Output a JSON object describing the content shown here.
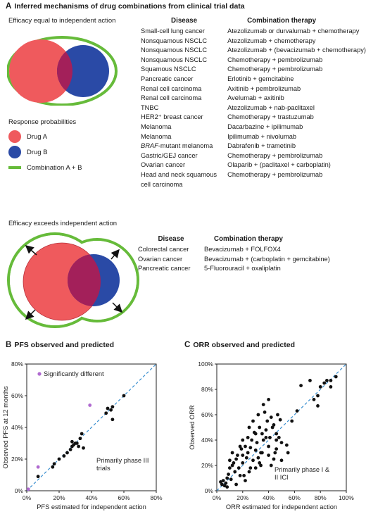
{
  "panel_a": {
    "letter": "A",
    "title": "Inferred mechanisms of drug combinations from clinical trial data",
    "section1": {
      "subtitle": "Efficacy equal to independent action",
      "col_disease": "Disease",
      "col_therapy": "Combination therapy",
      "rows": [
        {
          "disease": "Small-cell lung cancer",
          "therapy": "Atezolizumab or durvalumab + chemotherapy"
        },
        {
          "disease": "Nonsquamous NSCLC",
          "therapy": "Atezolizumab + chemotherapy"
        },
        {
          "disease": "Nonsquamous NSCLC",
          "therapy": "Atezolizumab + (bevacizumab + chemotherapy)"
        },
        {
          "disease": "Nonsquamous NSCLC",
          "therapy": "Chemotherapy + pembrolizumab"
        },
        {
          "disease": "Squamous NSCLC",
          "therapy": "Chemotherapy + pembrolizumab"
        },
        {
          "disease": "Pancreatic cancer",
          "therapy": "Erlotinib + gemcitabine"
        },
        {
          "disease": "Renal cell carcinoma",
          "therapy": "Axitinib + pembrolizumab"
        },
        {
          "disease": "Renal cell carcinoma",
          "therapy": "Avelumab + axitinib"
        },
        {
          "disease": "TNBC",
          "therapy": "Atezolizumab + nab-paclitaxel"
        },
        {
          "disease": "HER2⁺ breast cancer",
          "therapy": "Chemotherapy + trastuzumab"
        },
        {
          "disease": "Melanoma",
          "therapy": "Dacarbazine + ipilimumab"
        },
        {
          "disease": "Melanoma",
          "therapy": "Ipilimumab + nivolumab"
        },
        {
          "disease_em": "BRAF",
          "disease": "-mutant melanoma",
          "therapy": "Dabrafenib + trametinib"
        },
        {
          "disease": "Gastric/GEJ cancer",
          "therapy": "Chemotherapy + pembrolizumab"
        },
        {
          "disease": "Ovarian cancer",
          "therapy": "Olaparib + (paclitaxel + carboplatin)"
        },
        {
          "disease": "Head and neck squamous",
          "therapy": "Chemotherapy + pembrolizumab"
        },
        {
          "disease": "cell carcinoma",
          "therapy": ""
        }
      ]
    },
    "legend": {
      "title": "Response probabilities",
      "drug_a": "Drug A",
      "drug_b": "Drug B",
      "combo": "Combination A + B"
    },
    "colors": {
      "drug_a": "#ef5a5d",
      "drug_b": "#2a4aa6",
      "overlap": "#a3205a",
      "combo": "#66bb3a"
    },
    "section2": {
      "subtitle": "Efficacy exceeds independent action",
      "col_disease": "Disease",
      "col_therapy": "Combination therapy",
      "rows": [
        {
          "disease": "Colorectal cancer",
          "therapy": "Bevacizumab + FOLFOX4"
        },
        {
          "disease": "Ovarian cancer",
          "therapy": "Bevacizumab + (carboplatin + gemcitabine)"
        },
        {
          "disease": "Pancreatic cancer",
          "therapy": "5-Fluorouracil + oxaliplatin"
        }
      ]
    }
  },
  "chart_data": [
    {
      "letter": "B",
      "title": "PFS observed and predicted",
      "type": "scatter",
      "xlabel": "PFS estimated for independent action",
      "ylabel": "Observed PFS at 12 months",
      "xlim": [
        0,
        80
      ],
      "ylim": [
        0,
        80
      ],
      "xticks": [
        "0%",
        "20%",
        "40%",
        "60%",
        "80%"
      ],
      "yticks": [
        "0%",
        "20%",
        "40%",
        "60%",
        "80%"
      ],
      "annotation": "Primarily phase III trials",
      "legend_label": "Significantly different",
      "series": [
        {
          "key": "ns",
          "color": "#111111",
          "points": [
            [
              7,
              9
            ],
            [
              16,
              15
            ],
            [
              17,
              17
            ],
            [
              20,
              20
            ],
            [
              23,
              22
            ],
            [
              25,
              24
            ],
            [
              27,
              26
            ],
            [
              28,
              28
            ],
            [
              29,
              29
            ],
            [
              28,
              31
            ],
            [
              30,
              30
            ],
            [
              31,
              30
            ],
            [
              32,
              28
            ],
            [
              33,
              33
            ],
            [
              34,
              36
            ],
            [
              35,
              27
            ],
            [
              49,
              49
            ],
            [
              50,
              52
            ],
            [
              52,
              51
            ],
            [
              53,
              53
            ],
            [
              53,
              45
            ],
            [
              60,
              60
            ]
          ]
        },
        {
          "key": "sig",
          "color": "#b06ad0",
          "points": [
            [
              7,
              15
            ],
            [
              39,
              54
            ],
            [
              1,
              1
            ]
          ]
        }
      ]
    },
    {
      "letter": "C",
      "title": "ORR observed and predicted",
      "type": "scatter",
      "xlabel": "ORR estimated for independent action",
      "ylabel": "Observed ORR",
      "xlim": [
        0,
        100
      ],
      "ylim": [
        0,
        100
      ],
      "xticks": [
        "0%",
        "20%",
        "40%",
        "60%",
        "80%",
        "100%"
      ],
      "yticks": [
        "0%",
        "20%",
        "40%",
        "60%",
        "80%",
        "100%"
      ],
      "annotation": "Primarily phase I & II ICI trials",
      "series": [
        {
          "key": "all",
          "color": "#111111",
          "points": [
            [
              3,
              7
            ],
            [
              4,
              5
            ],
            [
              5,
              8
            ],
            [
              6,
              4
            ],
            [
              7,
              6
            ],
            [
              8,
              10
            ],
            [
              9,
              13
            ],
            [
              10,
              18
            ],
            [
              11,
              9
            ],
            [
              12,
              20
            ],
            [
              13,
              22
            ],
            [
              14,
              15
            ],
            [
              15,
              25
            ],
            [
              16,
              28
            ],
            [
              17,
              18
            ],
            [
              18,
              35
            ],
            [
              19,
              33
            ],
            [
              20,
              22
            ],
            [
              21,
              12
            ],
            [
              22,
              35
            ],
            [
              23,
              26
            ],
            [
              24,
              30
            ],
            [
              25,
              15
            ],
            [
              26,
              34
            ],
            [
              27,
              40
            ],
            [
              28,
              24
            ],
            [
              29,
              46
            ],
            [
              30,
              32
            ],
            [
              31,
              38
            ],
            [
              32,
              26
            ],
            [
              33,
              50
            ],
            [
              34,
              30
            ],
            [
              35,
              45
            ],
            [
              36,
              40
            ],
            [
              37,
              62
            ],
            [
              38,
              48
            ],
            [
              39,
              55
            ],
            [
              40,
              35
            ],
            [
              41,
              42
            ],
            [
              42,
              20
            ],
            [
              43,
              50
            ],
            [
              44,
              52
            ],
            [
              45,
              30
            ],
            [
              46,
              45
            ],
            [
              47,
              60
            ],
            [
              48,
              42
            ],
            [
              49,
              56
            ],
            [
              50,
              38
            ],
            [
              15,
              5
            ],
            [
              20,
              40
            ],
            [
              22,
              8
            ],
            [
              25,
              50
            ],
            [
              28,
              55
            ],
            [
              30,
              18
            ],
            [
              32,
              60
            ],
            [
              33,
              22
            ],
            [
              35,
              30
            ],
            [
              38,
              42
            ],
            [
              40,
              72
            ],
            [
              36,
              68
            ],
            [
              42,
              58
            ],
            [
              44,
              25
            ],
            [
              46,
              40
            ],
            [
              24,
              42
            ],
            [
              26,
              18
            ],
            [
              18,
              12
            ],
            [
              12,
              30
            ],
            [
              10,
              24
            ],
            [
              30,
              45
            ],
            [
              34,
              20
            ],
            [
              8,
              3
            ],
            [
              50,
              24
            ],
            [
              55,
              30
            ],
            [
              58,
              55
            ],
            [
              62,
              63
            ],
            [
              65,
              83
            ],
            [
              72,
              87
            ],
            [
              75,
              72
            ],
            [
              78,
              75
            ],
            [
              78,
              67
            ],
            [
              80,
              82
            ],
            [
              83,
              85
            ],
            [
              85,
              87
            ],
            [
              88,
              87
            ],
            [
              88,
              82
            ],
            [
              92,
              90
            ],
            [
              54,
              36
            ],
            [
              46,
              33
            ],
            [
              40,
              28
            ],
            [
              20,
              28
            ]
          ]
        }
      ]
    }
  ]
}
